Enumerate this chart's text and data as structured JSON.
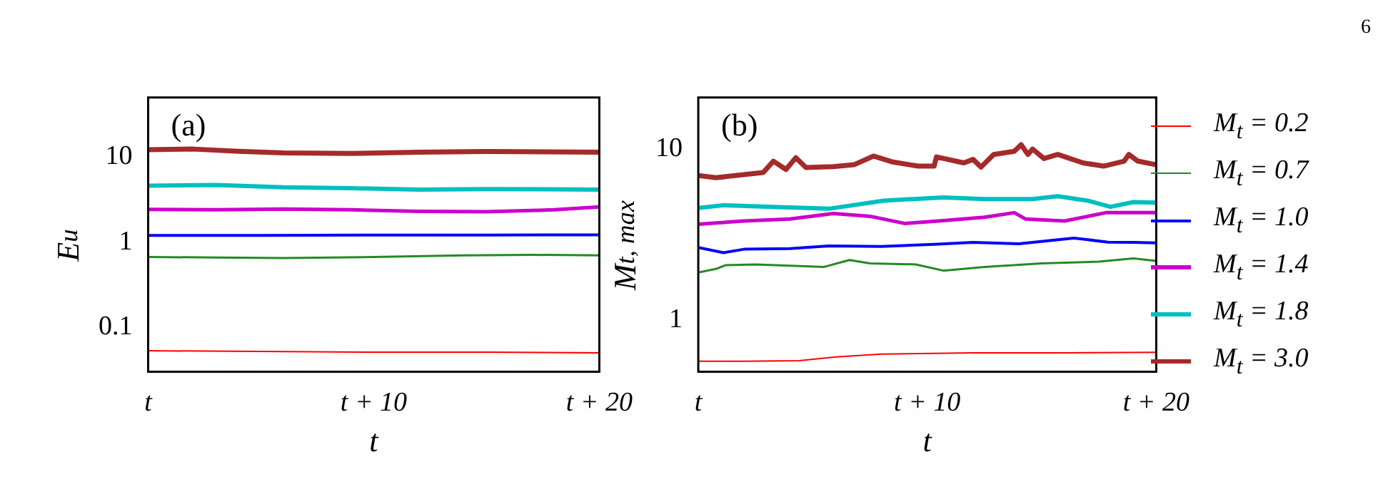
{
  "chart_data": [
    {
      "type": "line",
      "xlabel": "t",
      "ylabel": "E$_{u}$",
      "annotations": [
        "(a)"
      ],
      "log": "y",
      "grid": false,
      "legend": false,
      "xlim": [
        0,
        20
      ],
      "xticks": [
        {
          "value": 0,
          "label": "t"
        },
        {
          "value": 10,
          "label": "t + 10"
        },
        {
          "value": 20,
          "label": "t + 20"
        }
      ],
      "ylim": [
        0.03,
        50
      ],
      "yticks": [
        0.1,
        1,
        10
      ],
      "series": [
        {
          "color": "#ff0000",
          "x": [
            0,
            5,
            10,
            15,
            20
          ],
          "values": [
            0.053,
            0.052,
            0.051,
            0.051,
            0.05
          ]
        },
        {
          "color": "#228b22",
          "x": [
            0,
            3,
            6,
            10,
            14,
            17,
            20
          ],
          "values": [
            0.67,
            0.66,
            0.65,
            0.67,
            0.7,
            0.71,
            0.7
          ]
        },
        {
          "color": "#0000ff",
          "x": [
            0,
            5,
            10,
            15,
            20
          ],
          "values": [
            1.2,
            1.2,
            1.21,
            1.21,
            1.22
          ]
        },
        {
          "color": "#cc00cc",
          "x": [
            0,
            3,
            6,
            9,
            12,
            15,
            18,
            20
          ],
          "values": [
            2.43,
            2.4,
            2.45,
            2.4,
            2.3,
            2.28,
            2.4,
            2.6
          ]
        },
        {
          "color": "#00bfbf",
          "x": [
            0,
            3,
            6,
            9,
            12,
            15,
            20
          ],
          "values": [
            4.6,
            4.7,
            4.4,
            4.3,
            4.15,
            4.2,
            4.15
          ]
        },
        {
          "color": "#a52a2a",
          "x": [
            0,
            2,
            4,
            6,
            9,
            12,
            15,
            20
          ],
          "values": [
            12.2,
            12.4,
            11.7,
            11.2,
            11.0,
            11.4,
            11.6,
            11.4
          ]
        }
      ]
    },
    {
      "type": "line",
      "xlabel": "t",
      "ylabel": "M$_{t, max}$",
      "annotations": [
        "(b)",
        "6"
      ],
      "log": "y",
      "grid": false,
      "legend": "right",
      "xlim": [
        0,
        20
      ],
      "xticks": [
        {
          "value": 0,
          "label": "t"
        },
        {
          "value": 10,
          "label": "t + 10"
        },
        {
          "value": 20,
          "label": "t + 20"
        }
      ],
      "ylim": [
        0.5,
        20
      ],
      "yticks": [
        1,
        10
      ],
      "series": [
        {
          "name": "M$_{t}$ = 0.2",
          "color": "#ff0000",
          "x": [
            0,
            2,
            4.4,
            6,
            8,
            12,
            16,
            20
          ],
          "values": [
            0.577,
            0.577,
            0.58,
            0.61,
            0.635,
            0.645,
            0.645,
            0.65
          ]
        },
        {
          "name": "M$_{t}$ = 0.7",
          "color": "#228b22",
          "x": [
            0,
            0.8,
            1.2,
            2.5,
            5.5,
            6.6,
            7.5,
            9.5,
            10.7,
            12.5,
            15,
            17.5,
            19,
            20
          ],
          "values": [
            1.9,
            2.0,
            2.1,
            2.12,
            2.05,
            2.25,
            2.15,
            2.12,
            1.95,
            2.05,
            2.15,
            2.2,
            2.3,
            2.22
          ]
        },
        {
          "name": "M$_{t}$ = 1.0",
          "color": "#0000ff",
          "x": [
            0,
            1.1,
            2,
            4,
            5.7,
            8,
            10.3,
            12,
            14,
            16.4,
            17.9,
            19,
            20
          ],
          "values": [
            2.66,
            2.48,
            2.6,
            2.62,
            2.72,
            2.7,
            2.78,
            2.85,
            2.8,
            3.02,
            2.86,
            2.85,
            2.83
          ]
        },
        {
          "name": "M$_{t}$ = 1.4",
          "color": "#cc00cc",
          "x": [
            0,
            2,
            4,
            5.9,
            7.5,
            9,
            10.5,
            12.5,
            13.8,
            14.3,
            16,
            17.8,
            20
          ],
          "values": [
            3.64,
            3.8,
            3.9,
            4.2,
            4.05,
            3.68,
            3.8,
            4.0,
            4.25,
            3.9,
            3.8,
            4.25,
            4.25
          ]
        },
        {
          "name": "M$_{t}$ = 1.8",
          "color": "#00bfbf",
          "x": [
            0,
            1.1,
            3,
            5.7,
            8.1,
            10.7,
            12.5,
            14.6,
            15.7,
            17,
            18,
            19,
            20
          ],
          "values": [
            4.53,
            4.7,
            4.6,
            4.48,
            5.0,
            5.22,
            5.1,
            5.1,
            5.3,
            5.0,
            4.6,
            4.9,
            4.87
          ]
        },
        {
          "name": "M$_{t}$ = 3.0",
          "color": "#a52a2a",
          "x": [
            0,
            0.77,
            2.84,
            3.28,
            3.83,
            4.26,
            4.7,
            5.9,
            6.8,
            7.65,
            8.5,
            9.6,
            10.3,
            10.4,
            11.6,
            12.0,
            12.35,
            12.9,
            13.8,
            14.1,
            14.4,
            14.6,
            15.1,
            15.7,
            16.8,
            17.7,
            18.6,
            18.8,
            19.2,
            20
          ],
          "values": [
            7.0,
            6.8,
            7.3,
            8.5,
            7.6,
            8.9,
            7.8,
            7.9,
            8.1,
            9.1,
            8.4,
            7.95,
            7.95,
            9.0,
            8.3,
            8.7,
            7.85,
            9.3,
            9.7,
            10.6,
            9.3,
            10.0,
            8.8,
            9.3,
            8.3,
            7.95,
            8.5,
            9.3,
            8.5,
            8.1
          ]
        }
      ]
    }
  ]
}
